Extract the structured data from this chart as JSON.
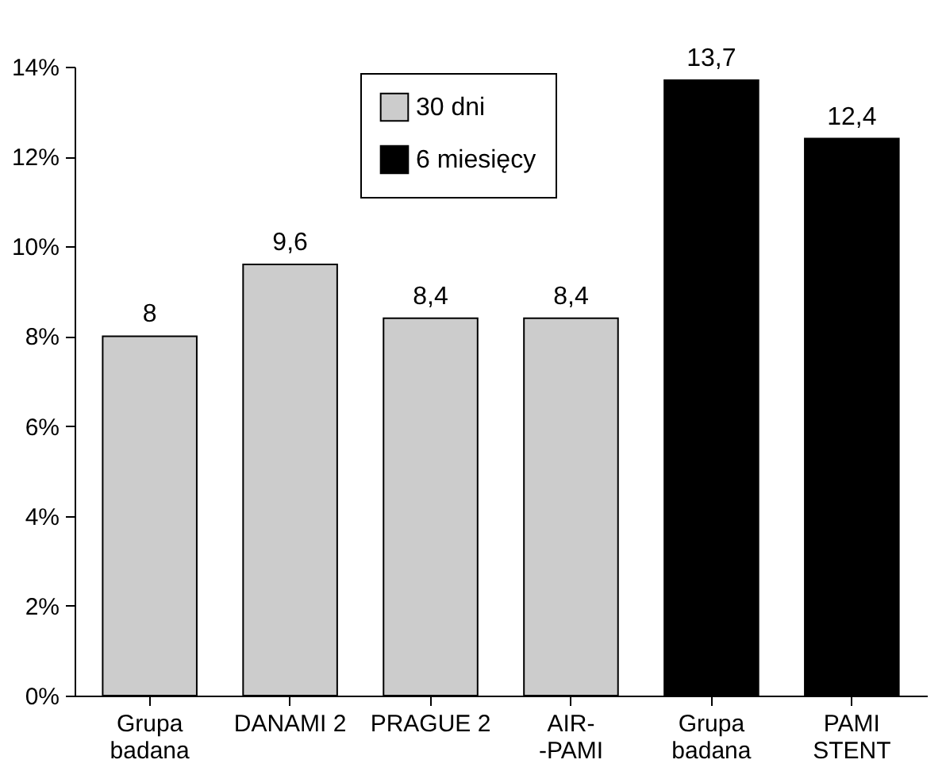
{
  "chart_data": {
    "type": "bar",
    "categories": [
      "Grupa\nbadana",
      "DANAMI 2",
      "PRAGUE 2",
      "AIR-\n-PAMI",
      "Grupa\nbadana",
      "PAMI\nSTENT"
    ],
    "series": [
      {
        "name": "30 dni",
        "color": "#cccccc",
        "values": [
          8,
          9.6,
          8.4,
          8.4,
          null,
          null
        ],
        "value_labels": [
          "8",
          "9,6",
          "8,4",
          "8,4",
          null,
          null
        ]
      },
      {
        "name": "6 miesięcy",
        "color": "#000000",
        "values": [
          null,
          null,
          null,
          null,
          13.7,
          12.4
        ],
        "value_labels": [
          null,
          null,
          null,
          null,
          "13,7",
          "12,4"
        ]
      }
    ],
    "ylim": [
      0,
      14
    ],
    "yticks": [
      {
        "value": 0,
        "label": "0%"
      },
      {
        "value": 2,
        "label": "2%"
      },
      {
        "value": 4,
        "label": "4%"
      },
      {
        "value": 6,
        "label": "6%"
      },
      {
        "value": 8,
        "label": "8%"
      },
      {
        "value": 10,
        "label": "10%"
      },
      {
        "value": 12,
        "label": "12%"
      },
      {
        "value": 14,
        "label": "14%"
      }
    ],
    "legend": "top",
    "grid": false
  }
}
